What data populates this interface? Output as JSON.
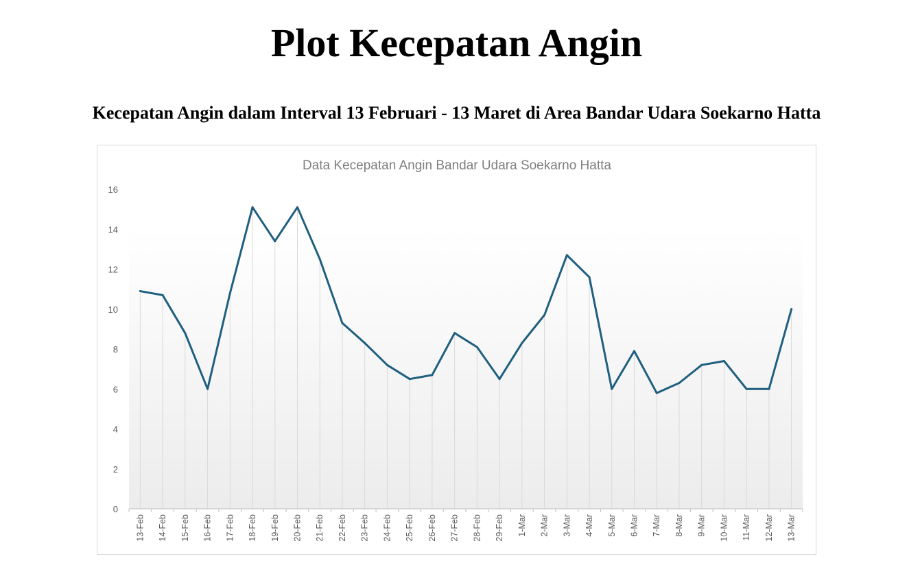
{
  "page": {
    "title": "Plot Kecepatan Angin",
    "subtitle": "Kecepatan Angin dalam Interval 13 Februari - 13 Maret di Area Bandar Udara Soekarno Hatta"
  },
  "chart_data": {
    "type": "line",
    "title": "Data Kecepatan Angin Bandar Udara Soekarno Hatta",
    "xlabel": "",
    "ylabel": "",
    "ylim": [
      0,
      16
    ],
    "yticks": [
      0,
      2,
      4,
      6,
      8,
      10,
      12,
      14,
      16
    ],
    "grid": "vertical drop lines",
    "legend": "none",
    "line_color": "#1f5f7f",
    "categories": [
      "13-Feb",
      "14-Feb",
      "15-Feb",
      "16-Feb",
      "17-Feb",
      "18-Feb",
      "19-Feb",
      "20-Feb",
      "21-Feb",
      "22-Feb",
      "23-Feb",
      "24-Feb",
      "25-Feb",
      "26-Feb",
      "27-Feb",
      "28-Feb",
      "29-Feb",
      "1-Mar",
      "2-Mar",
      "3-Mar",
      "4-Mar",
      "5-Mar",
      "6-Mar",
      "7-Mar",
      "8-Mar",
      "9-Mar",
      "10-Mar",
      "11-Mar",
      "12-Mar",
      "13-Mar"
    ],
    "values": [
      10.9,
      10.7,
      8.8,
      6.0,
      10.8,
      15.1,
      13.4,
      15.1,
      12.5,
      9.3,
      8.3,
      7.2,
      6.5,
      6.7,
      8.8,
      8.1,
      6.5,
      8.3,
      9.7,
      12.7,
      11.6,
      6.0,
      7.9,
      5.8,
      6.3,
      7.2,
      7.4,
      6.0,
      6.0,
      10.0
    ]
  }
}
